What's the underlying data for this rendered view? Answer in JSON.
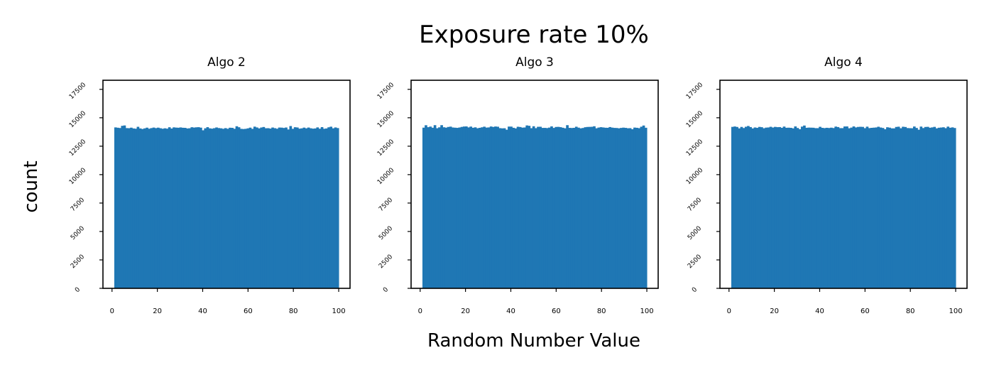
{
  "figure": {
    "title": "Exposure rate 10%",
    "ylabel": "count",
    "xlabel": "Random Number Value"
  },
  "chart_data": [
    {
      "type": "bar",
      "title": "Algo 2",
      "bins": 100,
      "bin_range": [
        1,
        100
      ],
      "typical_count": 14100,
      "count_range": [
        13900,
        14350
      ],
      "xlim": [
        -4,
        105
      ],
      "ylim": [
        0,
        18300
      ],
      "xticks": [
        0,
        20,
        40,
        60,
        80,
        100
      ],
      "yticks": [
        0,
        2500,
        5000,
        7500,
        10000,
        12500,
        15000,
        17500
      ],
      "color": "#1f77b4"
    },
    {
      "type": "bar",
      "title": "Algo 3",
      "bins": 100,
      "bin_range": [
        1,
        100
      ],
      "typical_count": 14150,
      "count_range": [
        13950,
        14350
      ],
      "xlim": [
        -4,
        105
      ],
      "ylim": [
        0,
        18300
      ],
      "xticks": [
        0,
        20,
        40,
        60,
        80,
        100
      ],
      "yticks": [
        0,
        2500,
        5000,
        7500,
        10000,
        12500,
        15000,
        17500
      ],
      "color": "#1f77b4"
    },
    {
      "type": "bar",
      "title": "Algo 4",
      "bins": 100,
      "bin_range": [
        1,
        100
      ],
      "typical_count": 14150,
      "count_range": [
        13950,
        14400
      ],
      "xlim": [
        -4,
        105
      ],
      "ylim": [
        0,
        18300
      ],
      "xticks": [
        0,
        20,
        40,
        60,
        80,
        100
      ],
      "yticks": [
        0,
        2500,
        5000,
        7500,
        10000,
        12500,
        15000,
        17500
      ],
      "color": "#1f77b4"
    }
  ]
}
